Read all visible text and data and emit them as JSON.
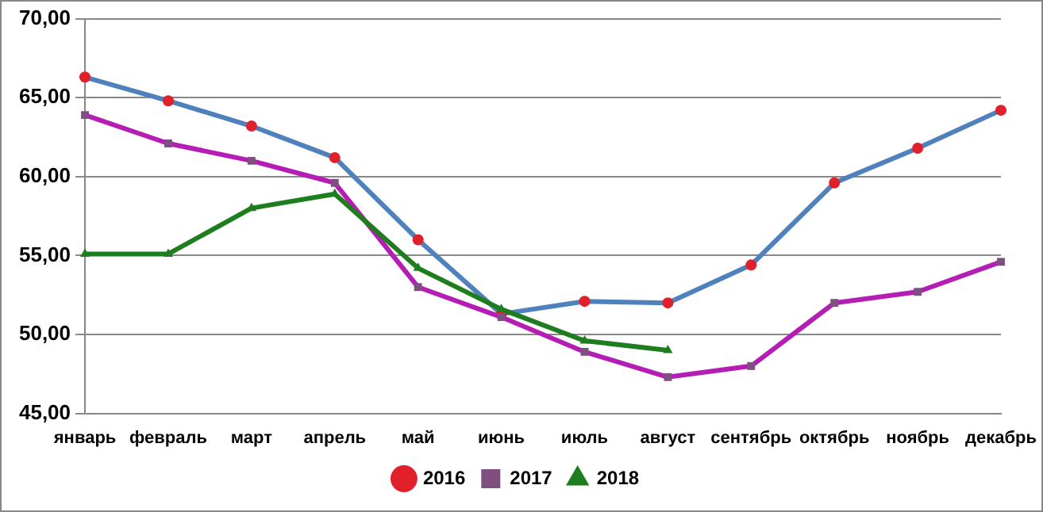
{
  "chart_data": {
    "type": "line",
    "categories": [
      "январь",
      "февраль",
      "март",
      "апрель",
      "май",
      "июнь",
      "июль",
      "август",
      "сентябрь",
      "октябрь",
      "ноябрь",
      "декабрь"
    ],
    "series": [
      {
        "name": "2016",
        "color": "#4f81bd",
        "marker": "circle",
        "values": [
          66.3,
          64.8,
          63.2,
          61.2,
          56.0,
          51.3,
          52.1,
          52.0,
          54.4,
          59.6,
          61.8,
          64.2
        ]
      },
      {
        "name": "2017",
        "color": "#b41eb4",
        "marker": "square",
        "values": [
          63.9,
          62.1,
          61.0,
          59.6,
          53.0,
          51.1,
          48.9,
          47.3,
          48.0,
          52.0,
          52.7,
          54.6
        ]
      },
      {
        "name": "2018",
        "color": "#1e7d1e",
        "marker": "triangle",
        "values": [
          55.1,
          55.1,
          58.0,
          58.9,
          54.2,
          51.6,
          49.6,
          49.0,
          null,
          null,
          null,
          null
        ]
      }
    ],
    "ylim": [
      45,
      70
    ],
    "yticks": [
      {
        "value": 45,
        "label": "45,00"
      },
      {
        "value": 50,
        "label": "50,00"
      },
      {
        "value": 55,
        "label": "55,00"
      },
      {
        "value": 60,
        "label": "60,00"
      },
      {
        "value": 65,
        "label": "65,00"
      },
      {
        "value": 70,
        "label": "70,00"
      }
    ],
    "grid": "y",
    "legend": "bottom",
    "line_style": "solid"
  }
}
